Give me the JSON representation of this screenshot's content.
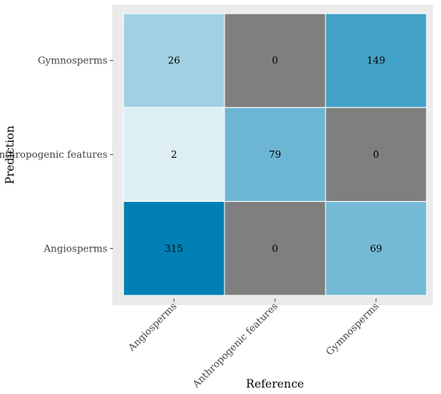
{
  "chart_data": {
    "type": "heatmap",
    "title": "",
    "xlabel": "Reference",
    "ylabel": "Prediction",
    "x_categories": [
      "Angiosperms",
      "Anthropogenic features",
      "Gymnosperms"
    ],
    "y_categories": [
      "Angiosperms",
      "Anthropogenic features",
      "Gymnosperms"
    ],
    "rows": [
      {
        "prediction": "Gymnosperms",
        "values": [
          26,
          0,
          149
        ]
      },
      {
        "prediction": "Anthropogenic features",
        "values": [
          2,
          79,
          0
        ]
      },
      {
        "prediction": "Angiosperms",
        "values": [
          315,
          0,
          69
        ]
      }
    ],
    "zero_color": "#7f7f7f",
    "low_color": "#ffffff",
    "high_color": "#0080b3",
    "panel_background": "#ebebeb",
    "grid": false,
    "legend": "none"
  }
}
